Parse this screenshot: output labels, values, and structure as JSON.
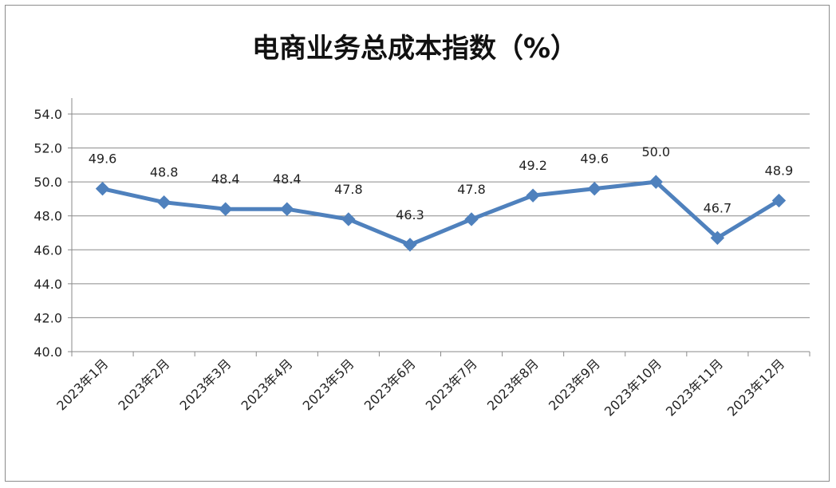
{
  "chart_data": {
    "type": "line",
    "title": "电商业务总成本指数（%）",
    "categories": [
      "2023年1月",
      "2023年2月",
      "2023年3月",
      "2023年4月",
      "2023年5月",
      "2023年6月",
      "2023年7月",
      "2023年8月",
      "2023年9月",
      "2023年10月",
      "2023年11月",
      "2023年12月"
    ],
    "series": [
      {
        "values": [
          49.6,
          48.8,
          48.4,
          48.4,
          47.8,
          46.3,
          47.8,
          49.2,
          49.6,
          50.0,
          46.7,
          48.9
        ]
      }
    ],
    "data_labels": [
      "49.6",
      "48.8",
      "48.4",
      "48.4",
      "47.8",
      "46.3",
      "47.8",
      "49.2",
      "49.6",
      "50.0",
      "46.7",
      "48.9"
    ],
    "y_ticks": [
      "40.0",
      "42.0",
      "44.0",
      "46.0",
      "48.0",
      "50.0",
      "52.0",
      "54.0"
    ],
    "ylim": [
      40,
      54
    ],
    "grid": true,
    "legend": "none",
    "xlabel": "",
    "ylabel": "",
    "line_color": "#4f81bd"
  }
}
